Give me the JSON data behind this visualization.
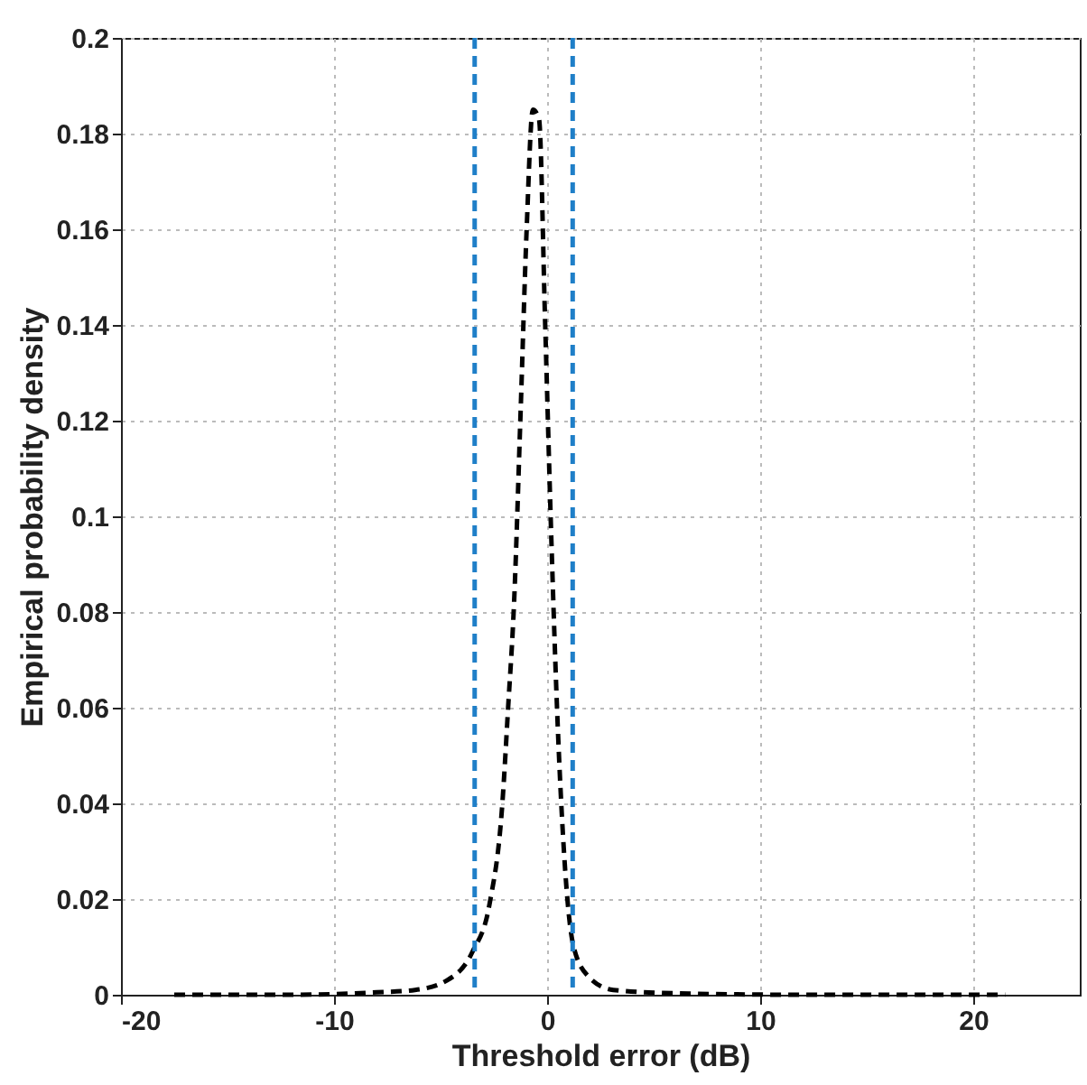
{
  "chart_data": {
    "type": "line",
    "xlabel": "Threshold error (dB)",
    "ylabel": "Empirical probability density",
    "xlim": [
      -20,
      25
    ],
    "xticks": [
      -20,
      -10,
      0,
      10,
      20
    ],
    "ylim": [
      0,
      0.2
    ],
    "yticks": [
      0,
      0.02,
      0.04,
      0.06,
      0.08,
      0.1,
      0.12,
      0.14,
      0.16,
      0.18,
      0.2
    ],
    "grid": true,
    "line_style": "dashed",
    "series": [
      {
        "color": "#000000",
        "x": [
          -17.5,
          -12,
          -8,
          -6.2,
          -4.7,
          -3.5,
          -2.7,
          -2.1,
          -1.83,
          -1.55,
          -1.25,
          -0.96,
          -0.67,
          -0.38,
          -0.09,
          0.2,
          0.5,
          0.79,
          1.22,
          1.9,
          3.1,
          6,
          12,
          18,
          21.5
        ],
        "values": [
          0,
          0,
          0.0005,
          0.001,
          0.003,
          0.009,
          0.019,
          0.04,
          0.06,
          0.082,
          0.121,
          0.16,
          0.185,
          0.183,
          0.14,
          0.095,
          0.056,
          0.03,
          0.0105,
          0.004,
          0.001,
          0.0003,
          0,
          0,
          0
        ]
      }
    ],
    "ref_lines": [
      {
        "axis": "x",
        "value": -3.4,
        "color": "#1f7fc8",
        "line_style": "dashed"
      },
      {
        "axis": "x",
        "value": 1.2,
        "color": "#1f7fc8",
        "line_style": "dashed"
      }
    ]
  }
}
